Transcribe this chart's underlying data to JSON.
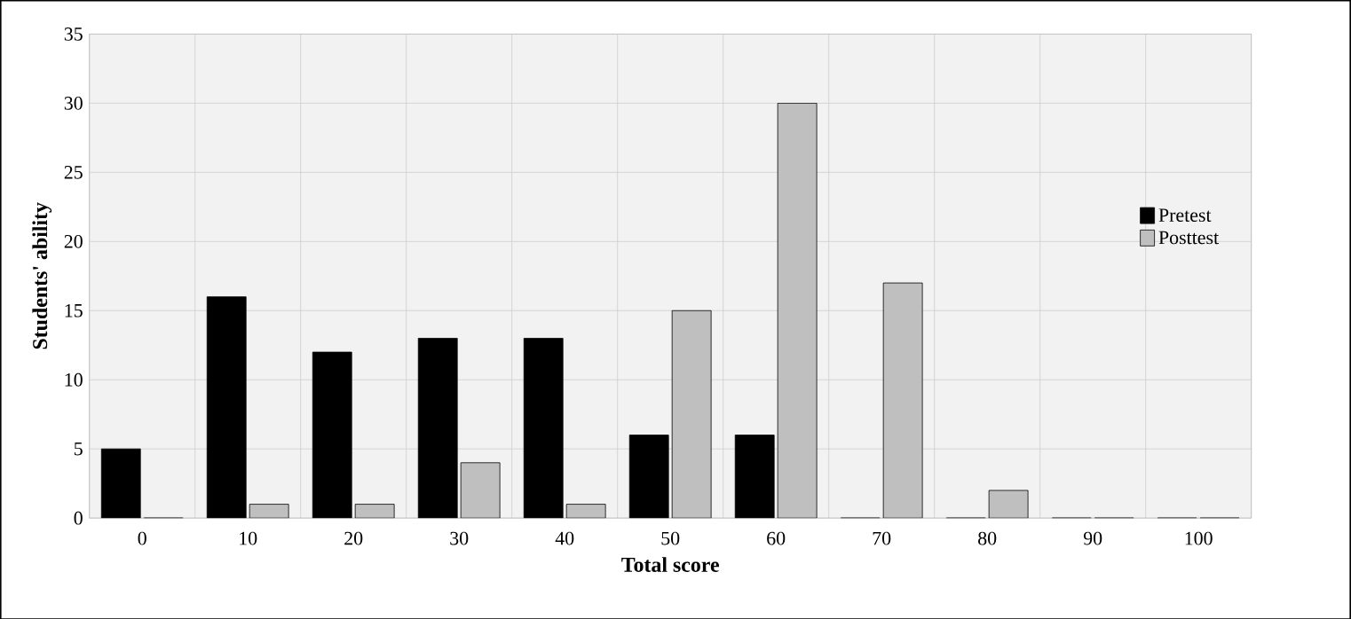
{
  "chart_data": {
    "type": "bar",
    "xlabel": "Total score",
    "ylabel": "Students' ability",
    "categories": [
      "0",
      "10",
      "20",
      "30",
      "40",
      "50",
      "60",
      "70",
      "80",
      "90",
      "100"
    ],
    "series": [
      {
        "name": "Pretest",
        "color": "#000000",
        "values": [
          5,
          16,
          12,
          13,
          13,
          6,
          6,
          0,
          0,
          0,
          0
        ]
      },
      {
        "name": "Posttest",
        "color": "#bfbfbf",
        "values": [
          0,
          1,
          1,
          4,
          1,
          15,
          30,
          17,
          2,
          0,
          0
        ]
      }
    ],
    "ylim": [
      0,
      35
    ],
    "yticks": [
      0,
      5,
      10,
      15,
      20,
      25,
      30,
      35
    ],
    "grid": true,
    "legend": "right"
  }
}
